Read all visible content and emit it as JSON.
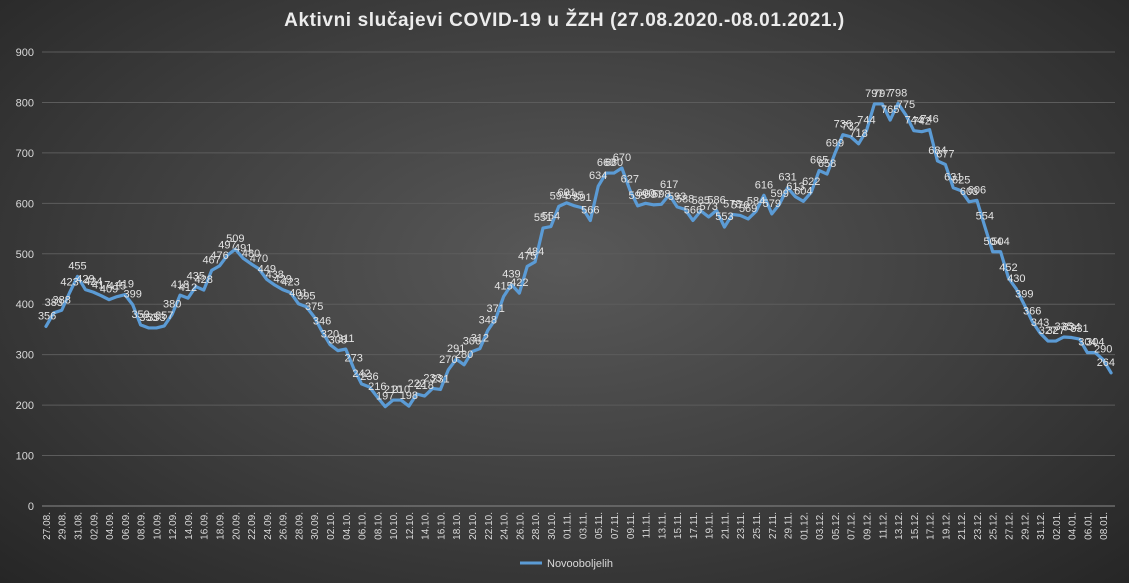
{
  "chart_data": {
    "type": "line",
    "title": "Aktivni  slučajevi  COVID-19  u  ŽZH  (27.08.2020.-08.01.2021.)",
    "xlabel": "",
    "ylabel": "",
    "ylim": [
      0,
      900
    ],
    "yticks": [
      0,
      100,
      200,
      300,
      400,
      500,
      600,
      700,
      800,
      900
    ],
    "grid": true,
    "legend_position": "bottom",
    "line_color": "#5B9BD5",
    "x_tick_labels": [
      "27.08.",
      "29.08.",
      "31.08.",
      "02.09.",
      "04.09.",
      "06.09.",
      "08.09.",
      "10.09.",
      "12.09.",
      "14.09.",
      "16.09.",
      "18.09.",
      "20.09.",
      "22.09.",
      "24.09.",
      "26.09.",
      "28.09.",
      "30.09.",
      "02.10.",
      "04.10.",
      "06.10.",
      "08.10.",
      "10.10.",
      "12.10.",
      "14.10.",
      "16.10.",
      "18.10.",
      "20.10.",
      "22.10.",
      "24.10.",
      "26.10.",
      "28.10.",
      "30.10.",
      "01.11.",
      "03.11.",
      "05.11.",
      "07.11.",
      "09.11.",
      "11.11.",
      "13.11.",
      "15.11.",
      "17.11.",
      "19.11.",
      "21.11.",
      "23.11.",
      "25.11.",
      "27.11.",
      "29.11.",
      "01.12.",
      "03.12.",
      "05.12.",
      "07.12.",
      "09.12.",
      "11.12.",
      "13.12.",
      "15.12.",
      "17.12.",
      "19.12.",
      "21.12.",
      "23.12.",
      "25.12.",
      "27.12.",
      "29.12.",
      "31.12.",
      "02.01.",
      "04.01.",
      "06.01.",
      "08.01."
    ],
    "series": [
      {
        "name": "Novooboljelih",
        "values": [
          356,
          383,
          388,
          423,
          455,
          429,
          424,
          417,
          409,
          415,
          419,
          399,
          359,
          353,
          353,
          357,
          380,
          418,
          412,
          435,
          428,
          467,
          476,
          497,
          509,
          491,
          480,
          470,
          449,
          438,
          429,
          423,
          401,
          395,
          375,
          346,
          320,
          308,
          311,
          273,
          242,
          236,
          216,
          197,
          210,
          210,
          198,
          222,
          218,
          233,
          231,
          270,
          291,
          280,
          306,
          312,
          348,
          371,
          415,
          439,
          422,
          475,
          484,
          551,
          554,
          594,
          601,
          595,
          591,
          566,
          634,
          660,
          660,
          670,
          627,
          595,
          600,
          597,
          598,
          617,
          593,
          588,
          566,
          585,
          573,
          586,
          553,
          578,
          576,
          569,
          584,
          616,
          579,
          599,
          631,
          613,
          604,
          622,
          665,
          658,
          699,
          736,
          732,
          718,
          744,
          797,
          797,
          765,
          798,
          775,
          744,
          742,
          746,
          684,
          677,
          631,
          625,
          603,
          606,
          554,
          504,
          504,
          452,
          430,
          399,
          366,
          343,
          327,
          327,
          335,
          334,
          331,
          304,
          304,
          290,
          264
        ]
      }
    ]
  }
}
